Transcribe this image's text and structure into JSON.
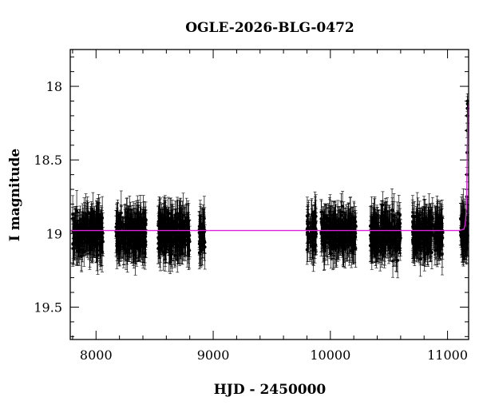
{
  "chart_data": {
    "type": "scatter",
    "title": "OGLE-2026-BLG-0472",
    "xlabel": "HJD - 2450000",
    "ylabel": "I magnitude",
    "xlim": [
      7780,
      11180
    ],
    "ylim": [
      19.72,
      17.75
    ],
    "y_inverted": true,
    "grid": false,
    "x_ticks": [
      8000,
      9000,
      10000,
      11000
    ],
    "y_ticks": [
      18,
      18.5,
      19,
      19.5
    ],
    "colors": {
      "data": "#000000",
      "model": "#dd22dd"
    },
    "series": [
      {
        "kind": "observations",
        "baseline_mag": 19.0,
        "scatter_mag": 0.11,
        "typical_error_mag": 0.11,
        "seasons": [
          {
            "start": 7800,
            "end": 8060,
            "count": 260
          },
          {
            "start": 8170,
            "end": 8430,
            "count": 260
          },
          {
            "start": 8530,
            "end": 8800,
            "count": 270
          },
          {
            "start": 8880,
            "end": 8930,
            "count": 45
          },
          {
            "start": 9800,
            "end": 9880,
            "count": 70
          },
          {
            "start": 9920,
            "end": 10220,
            "count": 260
          },
          {
            "start": 10340,
            "end": 10600,
            "count": 250
          },
          {
            "start": 10700,
            "end": 10960,
            "count": 260
          },
          {
            "start": 11110,
            "end": 11180,
            "count": 70
          }
        ],
        "event_points": [
          {
            "x": 11160,
            "y": 18.85
          },
          {
            "x": 11163,
            "y": 18.75
          },
          {
            "x": 11165,
            "y": 18.6
          },
          {
            "x": 11166,
            "y": 18.45
          },
          {
            "x": 11167,
            "y": 18.3
          },
          {
            "x": 11168,
            "y": 18.2
          },
          {
            "x": 11169,
            "y": 18.15
          },
          {
            "x": 11170,
            "y": 18.12
          },
          {
            "x": 11171,
            "y": 18.1
          },
          {
            "x": 11172,
            "y": 18.15
          },
          {
            "x": 11173,
            "y": 18.2
          },
          {
            "x": 11174,
            "y": 18.3
          }
        ]
      },
      {
        "kind": "model",
        "points": [
          [
            7780,
            18.98
          ],
          [
            11100,
            18.98
          ],
          [
            11140,
            18.97
          ],
          [
            11150,
            18.94
          ],
          [
            11155,
            18.9
          ],
          [
            11160,
            18.82
          ],
          [
            11164,
            18.7
          ],
          [
            11167,
            18.55
          ],
          [
            11170,
            18.38
          ],
          [
            11173,
            18.22
          ],
          [
            11176,
            18.15
          ],
          [
            11180,
            18.12
          ]
        ]
      }
    ]
  }
}
